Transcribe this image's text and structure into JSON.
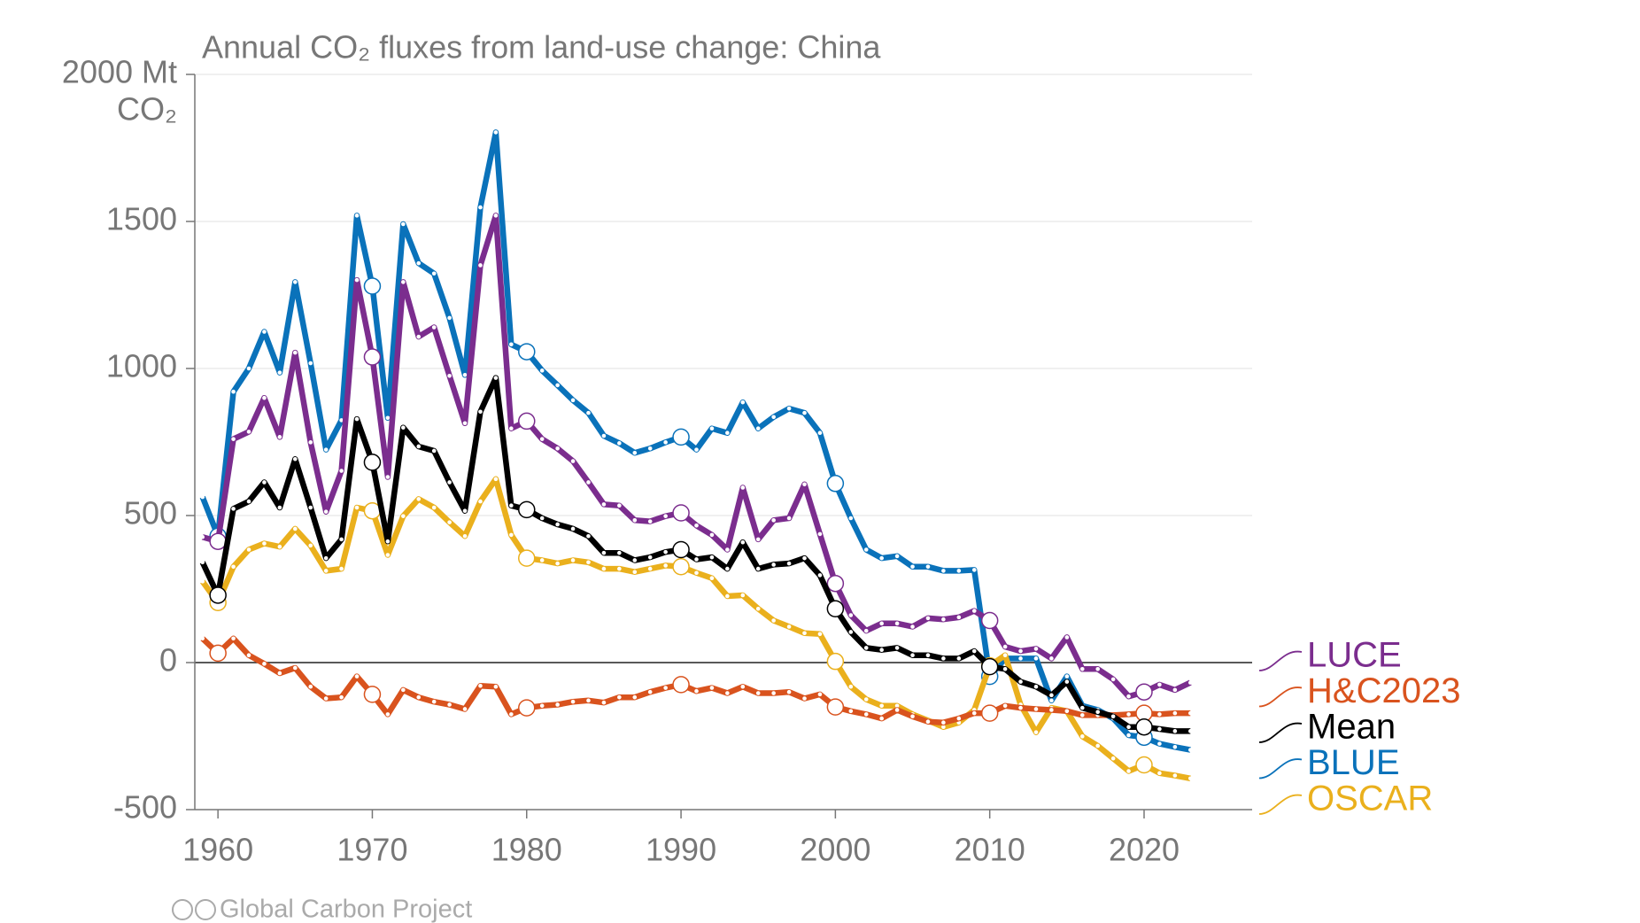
{
  "chart_data": {
    "type": "line",
    "title": "Annual CO₂ fluxes from land-use change: China",
    "y_unit": "CO₂",
    "footer": "Global Carbon Project",
    "x": [
      1959,
      1960,
      1961,
      1962,
      1963,
      1964,
      1965,
      1966,
      1967,
      1968,
      1969,
      1970,
      1971,
      1972,
      1973,
      1974,
      1975,
      1976,
      1977,
      1978,
      1979,
      1980,
      1981,
      1982,
      1983,
      1984,
      1985,
      1986,
      1987,
      1988,
      1989,
      1990,
      1991,
      1992,
      1993,
      1994,
      1995,
      1996,
      1997,
      1998,
      1999,
      2000,
      2001,
      2002,
      2003,
      2004,
      2005,
      2006,
      2007,
      2008,
      2009,
      2010,
      2011,
      2012,
      2013,
      2014,
      2015,
      2016,
      2017,
      2018,
      2019,
      2020,
      2021,
      2022,
      2023
    ],
    "xlim": [
      1958.5,
      2027
    ],
    "xticks": [
      1960,
      1970,
      1980,
      1990,
      2000,
      2010,
      2020
    ],
    "ylim": [
      -500,
      2000
    ],
    "yticks": [
      -500,
      0,
      500,
      1000,
      1500,
      {
        "value": 2000,
        "label": "2000 Mt"
      }
    ],
    "grid": true,
    "series": [
      {
        "name": "LUCE",
        "color": "#7b2d8e",
        "values": [
          427,
          412,
          760,
          785,
          900,
          767,
          1054,
          749,
          513,
          652,
          1301,
          1039,
          631,
          1294,
          1108,
          1140,
          975,
          814,
          1351,
          1520,
          796,
          821,
          760,
          728,
          685,
          613,
          538,
          534,
          484,
          480,
          498,
          509,
          466,
          434,
          384,
          595,
          419,
          484,
          491,
          606,
          437,
          269,
          161,
          108,
          133,
          133,
          122,
          151,
          147,
          154,
          176,
          143,
          54,
          39,
          47,
          14,
          86,
          -22,
          -22,
          -57,
          -115,
          -100,
          -75,
          -93,
          -68
        ]
      },
      {
        "name": "H&C2023",
        "color": "#d9531e",
        "values": [
          82,
          32,
          82,
          25,
          -4,
          -36,
          -18,
          -82,
          -122,
          -118,
          -47,
          -108,
          -176,
          -93,
          -118,
          -133,
          -143,
          -158,
          -79,
          -82,
          -176,
          -154,
          -147,
          -143,
          -133,
          -129,
          -136,
          -118,
          -118,
          -100,
          -86,
          -75,
          -97,
          -86,
          -104,
          -82,
          -104,
          -104,
          -100,
          -122,
          -108,
          -151,
          -165,
          -176,
          -190,
          -161,
          -183,
          -201,
          -204,
          -190,
          -172,
          -172,
          -147,
          -154,
          -158,
          -161,
          -165,
          -179,
          -179,
          -179,
          -176,
          -172,
          -176,
          -172,
          -172
        ]
      },
      {
        "name": "Mean",
        "color": "#000000",
        "values": [
          341,
          229,
          523,
          548,
          613,
          527,
          692,
          527,
          355,
          419,
          828,
          681,
          412,
          799,
          735,
          720,
          613,
          516,
          853,
          968,
          534,
          520,
          491,
          470,
          455,
          430,
          373,
          373,
          348,
          358,
          376,
          384,
          351,
          358,
          319,
          409,
          319,
          333,
          337,
          355,
          297,
          183,
          104,
          50,
          43,
          50,
          25,
          25,
          14,
          14,
          39,
          -14,
          -22,
          -65,
          -82,
          -111,
          -65,
          -154,
          -168,
          -183,
          -219,
          -219,
          -226,
          -233,
          -233
        ]
      },
      {
        "name": "BLUE",
        "color": "#0a72ba",
        "values": [
          563,
          430,
          921,
          1000,
          1125,
          986,
          1294,
          1018,
          724,
          824,
          1520,
          1280,
          832,
          1491,
          1358,
          1323,
          1172,
          978,
          1548,
          1803,
          1082,
          1057,
          993,
          943,
          892,
          849,
          771,
          746,
          713,
          728,
          749,
          767,
          724,
          796,
          781,
          885,
          796,
          835,
          864,
          849,
          781,
          609,
          491,
          384,
          355,
          362,
          326,
          326,
          312,
          312,
          315,
          -47,
          14,
          14,
          14,
          -129,
          -47,
          -147,
          -161,
          -190,
          -247,
          -254,
          -276,
          -287,
          -297
        ]
      },
      {
        "name": "OSCAR",
        "color": "#eab01d",
        "values": [
          276,
          204,
          326,
          384,
          405,
          394,
          455,
          398,
          312,
          319,
          527,
          516,
          366,
          498,
          556,
          527,
          477,
          430,
          548,
          624,
          434,
          355,
          348,
          337,
          348,
          341,
          319,
          319,
          308,
          319,
          330,
          326,
          305,
          287,
          226,
          229,
          183,
          143,
          122,
          100,
          97,
          4,
          -82,
          -125,
          -147,
          -147,
          -176,
          -197,
          -219,
          -204,
          -161,
          -11,
          25,
          -143,
          -237,
          -154,
          -165,
          -251,
          -283,
          -326,
          -369,
          -348,
          -376,
          -384,
          -394
        ]
      }
    ]
  }
}
